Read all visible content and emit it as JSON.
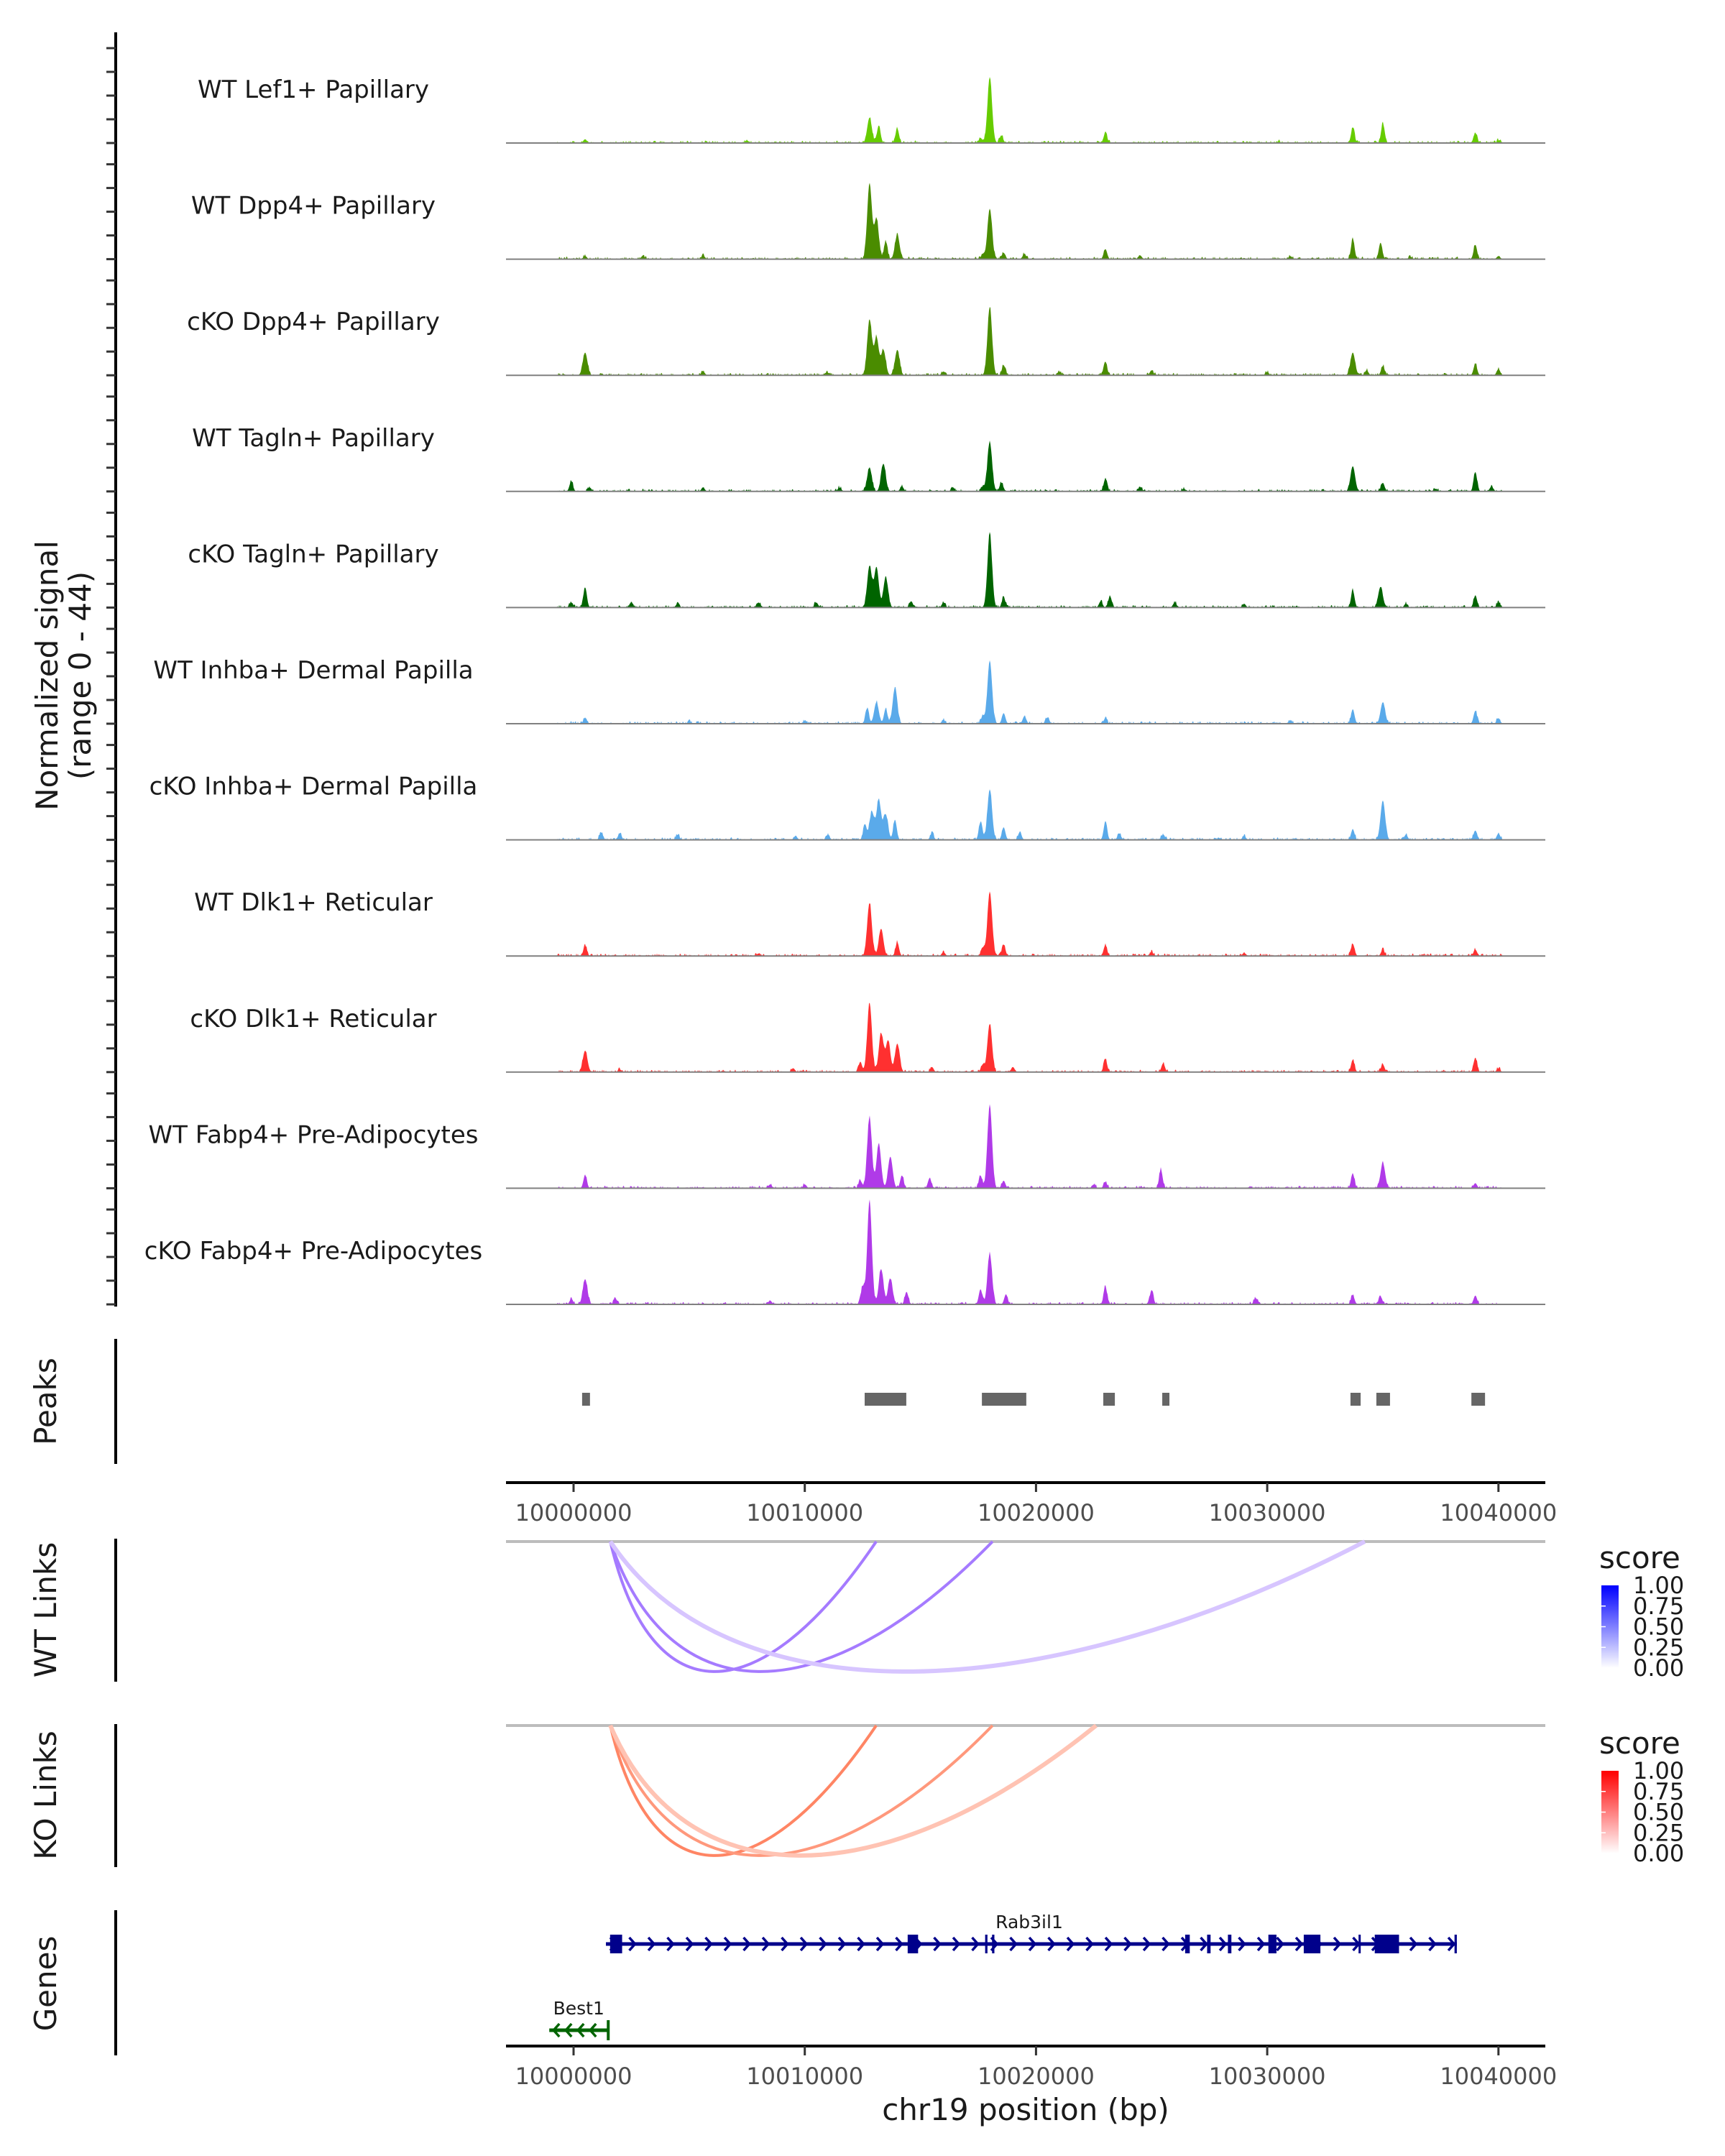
{
  "chart_data": {
    "type": "area",
    "title": "",
    "region": {
      "chrom": "chr19",
      "start": 9997100,
      "end": 10042000
    },
    "xlabel": "chr19 position (bp)",
    "ylabel_line1": "Normalized signal",
    "ylabel_line2": "(range 0 - 44)",
    "ylim": [
      0,
      44
    ],
    "x_ticks": [
      10000000,
      10010000,
      10020000,
      10030000,
      10040000
    ],
    "x_tick_labels": [
      "10000000",
      "10010000",
      "10020000",
      "10030000",
      "10040000"
    ],
    "tracks": [
      {
        "name": "WT Lef1+ Papillary",
        "color": "#66cc00",
        "peaks": [
          [
            10000500,
            1.5
          ],
          [
            10007500,
            1
          ],
          [
            10012800,
            10
          ],
          [
            10013200,
            7
          ],
          [
            10014000,
            5.7
          ],
          [
            10017600,
            2
          ],
          [
            10018000,
            25.5
          ],
          [
            10018500,
            3
          ],
          [
            10023000,
            4
          ],
          [
            10030500,
            0.6
          ],
          [
            10033700,
            6
          ],
          [
            10035000,
            7.7
          ],
          [
            10039000,
            4
          ],
          [
            10040000,
            1
          ]
        ]
      },
      {
        "name": "WT Dpp4+ Papillary",
        "color": "#4a8c00",
        "peaks": [
          [
            10000500,
            1.2
          ],
          [
            10003000,
            1
          ],
          [
            10005600,
            1.5
          ],
          [
            10012800,
            30
          ],
          [
            10013100,
            16
          ],
          [
            10013500,
            7
          ],
          [
            10014000,
            9.6
          ],
          [
            10017700,
            2
          ],
          [
            10018000,
            20
          ],
          [
            10018600,
            2.5
          ],
          [
            10019500,
            2
          ],
          [
            10023000,
            4
          ],
          [
            10024500,
            1.5
          ],
          [
            10031000,
            1.2
          ],
          [
            10033700,
            8
          ],
          [
            10034900,
            6.5
          ],
          [
            10036200,
            0.8
          ],
          [
            10039000,
            5.7
          ],
          [
            10040000,
            1.2
          ]
        ]
      },
      {
        "name": "cKO Dpp4+ Papillary",
        "color": "#4a8c00",
        "peaks": [
          [
            10000500,
            9
          ],
          [
            10005600,
            1.5
          ],
          [
            10011000,
            1
          ],
          [
            10012800,
            22
          ],
          [
            10013100,
            15
          ],
          [
            10013400,
            10
          ],
          [
            10014000,
            10
          ],
          [
            10016000,
            1.5
          ],
          [
            10018000,
            27
          ],
          [
            10018600,
            4
          ],
          [
            10021000,
            1.5
          ],
          [
            10023000,
            5.4
          ],
          [
            10025000,
            2
          ],
          [
            10030000,
            1.2
          ],
          [
            10033700,
            9
          ],
          [
            10034300,
            2
          ],
          [
            10035000,
            3.7
          ],
          [
            10039000,
            4.5
          ],
          [
            10040000,
            2.5
          ]
        ]
      },
      {
        "name": "WT Tagln+ Papillary",
        "color": "#006400",
        "peaks": [
          [
            9999900,
            4
          ],
          [
            10000700,
            1.5
          ],
          [
            10005600,
            1.5
          ],
          [
            10011500,
            1.5
          ],
          [
            10012800,
            9.4
          ],
          [
            10013400,
            11
          ],
          [
            10014200,
            2
          ],
          [
            10016400,
            1.5
          ],
          [
            10017700,
            2
          ],
          [
            10018000,
            19.6
          ],
          [
            10018500,
            3.5
          ],
          [
            10023000,
            5
          ],
          [
            10024500,
            1.8
          ],
          [
            10026400,
            1
          ],
          [
            10033700,
            10
          ],
          [
            10035000,
            3.4
          ],
          [
            10037300,
            1
          ],
          [
            10039000,
            7.7
          ],
          [
            10039700,
            2
          ]
        ]
      },
      {
        "name": "cKO Tagln+ Papillary",
        "color": "#006400",
        "peaks": [
          [
            9999900,
            2
          ],
          [
            10000500,
            8
          ],
          [
            10002500,
            2
          ],
          [
            10004500,
            1.5
          ],
          [
            10008000,
            2
          ],
          [
            10010500,
            2
          ],
          [
            10012800,
            16.5
          ],
          [
            10013100,
            16
          ],
          [
            10013500,
            12
          ],
          [
            10014600,
            2.5
          ],
          [
            10016000,
            2
          ],
          [
            10018000,
            29
          ],
          [
            10018600,
            4
          ],
          [
            10022800,
            2.5
          ],
          [
            10023200,
            4.5
          ],
          [
            10026000,
            2
          ],
          [
            10029000,
            1.5
          ],
          [
            10033700,
            6.8
          ],
          [
            10034900,
            8.2
          ],
          [
            10036000,
            1.5
          ],
          [
            10039000,
            4.8
          ],
          [
            10040000,
            2
          ]
        ]
      },
      {
        "name": "WT Inhba+ Dermal Papilla",
        "color": "#5aaaea",
        "peaks": [
          [
            10000500,
            2.3
          ],
          [
            10005000,
            0.8
          ],
          [
            10010000,
            1
          ],
          [
            10012700,
            6
          ],
          [
            10013100,
            8.5
          ],
          [
            10013500,
            6
          ],
          [
            10013900,
            14
          ],
          [
            10016000,
            1.5
          ],
          [
            10017700,
            3
          ],
          [
            10018000,
            25
          ],
          [
            10018600,
            4.2
          ],
          [
            10019500,
            3
          ],
          [
            10020500,
            2.5
          ],
          [
            10023000,
            2
          ],
          [
            10031000,
            1.2
          ],
          [
            10033700,
            5.7
          ],
          [
            10035000,
            8.5
          ],
          [
            10039000,
            5.1
          ],
          [
            10040000,
            2
          ]
        ]
      },
      {
        "name": "cKO Inhba+ Dermal Papilla",
        "color": "#5aaaea",
        "peaks": [
          [
            10001200,
            2.8
          ],
          [
            10002000,
            2.5
          ],
          [
            10004500,
            2
          ],
          [
            10009600,
            1.5
          ],
          [
            10011000,
            2
          ],
          [
            10012600,
            6
          ],
          [
            10012900,
            11
          ],
          [
            10013200,
            15.6
          ],
          [
            10013500,
            10
          ],
          [
            10013900,
            8
          ],
          [
            10015500,
            2.5
          ],
          [
            10017600,
            7
          ],
          [
            10018000,
            20
          ],
          [
            10018600,
            5
          ],
          [
            10019300,
            3
          ],
          [
            10023000,
            7
          ],
          [
            10023600,
            2.5
          ],
          [
            10025500,
            2
          ],
          [
            10029000,
            1.5
          ],
          [
            10033700,
            4.2
          ],
          [
            10035000,
            15.6
          ],
          [
            10036000,
            2
          ],
          [
            10039000,
            3.7
          ],
          [
            10040000,
            2.5
          ]
        ]
      },
      {
        "name": "WT Dlk1+ Reticular",
        "color": "#ff3030",
        "peaks": [
          [
            10000500,
            4
          ],
          [
            10008000,
            1
          ],
          [
            10012800,
            21
          ],
          [
            10013300,
            10.8
          ],
          [
            10014000,
            5.4
          ],
          [
            10016000,
            1.5
          ],
          [
            10017700,
            3
          ],
          [
            10018000,
            25.5
          ],
          [
            10018600,
            4.5
          ],
          [
            10023000,
            4.3
          ],
          [
            10025000,
            1.5
          ],
          [
            10029000,
            1.2
          ],
          [
            10033700,
            4.8
          ],
          [
            10035000,
            2.5
          ],
          [
            10039000,
            2.5
          ]
        ]
      },
      {
        "name": "cKO Dlk1+ Reticular",
        "color": "#ff3030",
        "peaks": [
          [
            10000500,
            8.5
          ],
          [
            10002000,
            1
          ],
          [
            10009500,
            1.5
          ],
          [
            10012400,
            4
          ],
          [
            10012800,
            27
          ],
          [
            10013300,
            15.3
          ],
          [
            10013600,
            12.5
          ],
          [
            10014000,
            11.3
          ],
          [
            10015500,
            2
          ],
          [
            10017700,
            3
          ],
          [
            10018000,
            19
          ],
          [
            10019000,
            2
          ],
          [
            10023000,
            5.1
          ],
          [
            10025500,
            3.5
          ],
          [
            10033700,
            4.8
          ],
          [
            10035000,
            3
          ],
          [
            10039000,
            5.7
          ],
          [
            10040000,
            1.5
          ]
        ]
      },
      {
        "name": "WT Fabp4+ Pre-Adipocytes",
        "color": "#b03ae8",
        "peaks": [
          [
            10000500,
            5.1
          ],
          [
            10008500,
            1.5
          ],
          [
            10010000,
            1.5
          ],
          [
            10012400,
            3
          ],
          [
            10012800,
            28
          ],
          [
            10013200,
            17.6
          ],
          [
            10013700,
            12.5
          ],
          [
            10014200,
            5
          ],
          [
            10015400,
            4
          ],
          [
            10017600,
            5
          ],
          [
            10018000,
            33
          ],
          [
            10018600,
            3
          ],
          [
            10022500,
            1.5
          ],
          [
            10023000,
            2.5
          ],
          [
            10025400,
            7.4
          ],
          [
            10033700,
            5.7
          ],
          [
            10035000,
            10
          ],
          [
            10039000,
            2
          ]
        ]
      },
      {
        "name": "cKO Fabp4+ Pre-Adipocytes",
        "color": "#b03ae8",
        "peaks": [
          [
            9999900,
            2
          ],
          [
            10000500,
            10
          ],
          [
            10001800,
            2.5
          ],
          [
            10008500,
            1.5
          ],
          [
            10012500,
            7
          ],
          [
            10012800,
            41
          ],
          [
            10013300,
            14
          ],
          [
            10013700,
            10
          ],
          [
            10014400,
            5
          ],
          [
            10017600,
            6
          ],
          [
            10018000,
            20
          ],
          [
            10018700,
            4
          ],
          [
            10023000,
            7
          ],
          [
            10025000,
            5.7
          ],
          [
            10029500,
            2.5
          ],
          [
            10033700,
            3.5
          ],
          [
            10034900,
            3
          ],
          [
            10039000,
            3.5
          ]
        ]
      }
    ],
    "peaks_track": {
      "label": "Peaks",
      "color": "#666666",
      "regions": [
        [
          10000370,
          10000710
        ],
        [
          10012590,
          10014390
        ],
        [
          10017660,
          10019580
        ],
        [
          10022910,
          10023410
        ],
        [
          10025460,
          10025770
        ],
        [
          10033600,
          10034040
        ],
        [
          10034720,
          10035310
        ],
        [
          10038830,
          10039420
        ]
      ]
    },
    "links": [
      {
        "label": "WT Links",
        "legend_title": "score",
        "low_color": "#ffffff",
        "high_color": "#0000ff",
        "arcs": [
          {
            "start": 10001590,
            "end": 10013090,
            "score": 0.45
          },
          {
            "start": 10001590,
            "end": 10018120,
            "score": 0.45
          },
          {
            "start": 10001590,
            "end": 10034220,
            "score": 0.2
          }
        ]
      },
      {
        "label": "KO Links",
        "legend_title": "score",
        "low_color": "#ffffff",
        "high_color": "#ff0000",
        "arcs": [
          {
            "start": 10001590,
            "end": 10013090,
            "score": 0.45
          },
          {
            "start": 10001590,
            "end": 10018120,
            "score": 0.38
          },
          {
            "start": 10001590,
            "end": 10022600,
            "score": 0.22
          }
        ]
      }
    ],
    "legend_ticks": [
      "1.00",
      "0.75",
      "0.50",
      "0.25",
      "0.00"
    ],
    "genes": {
      "label": "Genes",
      "items": [
        {
          "name": "Rab3il1",
          "strand": "+",
          "color": "#00008b",
          "start": 10001400,
          "end": 10038200,
          "exons": [
            [
              10001580,
              10002100
            ],
            [
              10014450,
              10014900
            ],
            [
              10017800,
              10017900
            ],
            [
              10018100,
              10018200
            ],
            [
              10026450,
              10026650
            ],
            [
              10027400,
              10027550
            ],
            [
              10028300,
              10028450
            ],
            [
              10030050,
              10030400
            ],
            [
              10031580,
              10032300
            ],
            [
              10033950,
              10034000
            ],
            [
              10034650,
              10035700
            ],
            [
              10038100,
              10038200
            ]
          ]
        },
        {
          "name": "Best1",
          "strand": "-",
          "color": "#006400",
          "start": 9998950,
          "end": 10001500,
          "exons": []
        }
      ]
    }
  }
}
